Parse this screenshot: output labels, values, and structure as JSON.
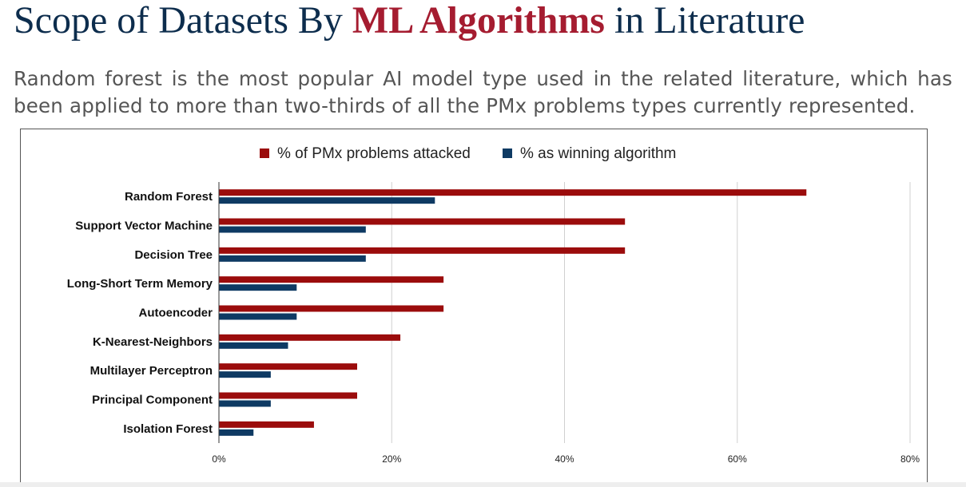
{
  "header": {
    "title_before": "Scope of Datasets By ",
    "title_accent": "ML Algorithms",
    "title_after": " in Literature",
    "intro": "Random forest is the most popular AI model type used in the related literature, which has been applied to more than two-thirds of all the PMx problems types currently represented."
  },
  "colors": {
    "title_dark": "#0d2d4d",
    "title_accent": "#a51c30",
    "series_attacked": "#9b0c0c",
    "series_winning": "#0e3a63"
  },
  "chart_data": {
    "type": "bar",
    "orientation": "horizontal",
    "categories": [
      "Random Forest",
      "Support Vector Machine",
      "Decision Tree",
      "Long-Short Term Memory",
      "Autoencoder",
      "K-Nearest-Neighbors",
      "Multilayer Perceptron",
      "Principal Component",
      "Isolation Forest"
    ],
    "series": [
      {
        "name": "% of PMx problems attacked",
        "color": "#9b0c0c",
        "values": [
          68,
          47,
          47,
          26,
          26,
          21,
          16,
          16,
          11
        ]
      },
      {
        "name": "% as winning algorithm",
        "color": "#0e3a63",
        "values": [
          25,
          17,
          17,
          9,
          9,
          8,
          6,
          6,
          4
        ]
      }
    ],
    "xlim": [
      0,
      80
    ],
    "x_ticks": [
      0,
      20,
      40,
      60,
      80
    ],
    "x_tick_labels": [
      "0%",
      "20%",
      "40%",
      "60%",
      "80%"
    ],
    "grid": true,
    "legend_position": "top"
  }
}
